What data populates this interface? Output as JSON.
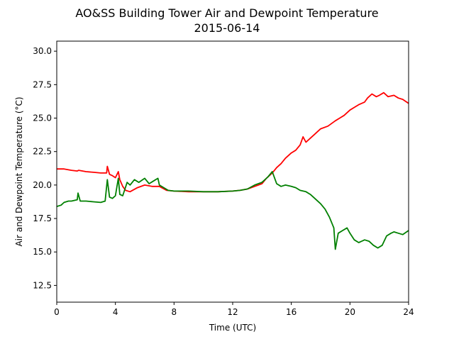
{
  "chart_data": {
    "type": "line",
    "title": "AO&SS Building Tower Air and Dewpoint Temperature",
    "subtitle": "2015-06-14",
    "xlabel": "Time (UTC)",
    "ylabel": "Air and Dewpoint Temperature (°C)",
    "xlim": [
      0,
      24
    ],
    "ylim": [
      11.25,
      30.75
    ],
    "xticks": [
      0,
      4,
      8,
      12,
      16,
      20,
      24
    ],
    "xtick_labels": [
      "0",
      "4",
      "8",
      "12",
      "16",
      "20",
      "24"
    ],
    "yticks": [
      12.5,
      15.0,
      17.5,
      20.0,
      22.5,
      25.0,
      27.5,
      30.0
    ],
    "ytick_labels": [
      "12.5",
      "15.0",
      "17.5",
      "20.0",
      "22.5",
      "25.0",
      "27.5",
      "30.0"
    ],
    "grid": false,
    "legend": "none",
    "series": [
      {
        "color": "#ff0000",
        "x": [
          0,
          0.5,
          1,
          1.4,
          1.5,
          2,
          2.5,
          3,
          3.4,
          3.45,
          3.6,
          3.8,
          4,
          4.2,
          4.3,
          4.5,
          4.7,
          5,
          5.5,
          6,
          6.5,
          7,
          7.5,
          8,
          9,
          10,
          11,
          12,
          12.5,
          13,
          13.5,
          14,
          14.3,
          14.7,
          15,
          15.3,
          15.6,
          16,
          16.3,
          16.6,
          16.8,
          17,
          17.3,
          17.6,
          18,
          18.5,
          19,
          19.3,
          19.6,
          20,
          20.3,
          20.6,
          21,
          21.2,
          21.5,
          21.8,
          22,
          22.3,
          22.6,
          23,
          23.3,
          23.6,
          24
        ],
        "y": [
          21.2,
          21.2,
          21.1,
          21.05,
          21.1,
          21.0,
          20.95,
          20.9,
          20.9,
          21.4,
          20.8,
          20.7,
          20.55,
          21.0,
          20.4,
          19.9,
          19.6,
          19.5,
          19.8,
          20.0,
          19.9,
          19.9,
          19.6,
          19.55,
          19.5,
          19.5,
          19.5,
          19.55,
          19.6,
          19.7,
          19.9,
          20.1,
          20.5,
          20.9,
          21.3,
          21.6,
          22.0,
          22.4,
          22.6,
          23.0,
          23.6,
          23.2,
          23.5,
          23.8,
          24.2,
          24.4,
          24.8,
          25.0,
          25.2,
          25.6,
          25.8,
          26.0,
          26.2,
          26.5,
          26.8,
          26.6,
          26.7,
          26.9,
          26.6,
          26.7,
          26.5,
          26.4,
          26.1
        ]
      },
      {
        "color": "#008000",
        "x": [
          0,
          0.3,
          0.5,
          0.8,
          1,
          1.4,
          1.45,
          1.6,
          2,
          2.5,
          3,
          3.3,
          3.45,
          3.6,
          3.8,
          4,
          4.2,
          4.3,
          4.5,
          4.8,
          5,
          5.3,
          5.6,
          6,
          6.3,
          6.6,
          6.9,
          7,
          7.3,
          7.6,
          8,
          9,
          10,
          11,
          12,
          12.5,
          13,
          13.5,
          14,
          14.4,
          14.7,
          15,
          15.3,
          15.6,
          16,
          16.3,
          16.6,
          17,
          17.3,
          17.6,
          18,
          18.3,
          18.6,
          18.9,
          19.0,
          19.2,
          19.5,
          19.8,
          20,
          20.3,
          20.6,
          21,
          21.3,
          21.6,
          21.9,
          22.2,
          22.5,
          22.8,
          23,
          23.3,
          23.6,
          24
        ],
        "y": [
          18.4,
          18.5,
          18.7,
          18.8,
          18.8,
          18.9,
          19.4,
          18.8,
          18.8,
          18.75,
          18.7,
          18.8,
          20.4,
          19.1,
          19.0,
          19.2,
          20.5,
          19.3,
          19.2,
          20.2,
          20.0,
          20.4,
          20.2,
          20.5,
          20.1,
          20.3,
          20.5,
          20.0,
          19.8,
          19.6,
          19.55,
          19.55,
          19.5,
          19.5,
          19.55,
          19.6,
          19.7,
          20.0,
          20.2,
          20.6,
          21.0,
          20.1,
          19.9,
          20.0,
          19.9,
          19.8,
          19.6,
          19.5,
          19.3,
          19.0,
          18.6,
          18.2,
          17.6,
          16.8,
          15.2,
          16.4,
          16.6,
          16.8,
          16.4,
          15.9,
          15.7,
          15.9,
          15.8,
          15.5,
          15.3,
          15.5,
          16.2,
          16.4,
          16.5,
          16.4,
          16.3,
          16.6
        ]
      }
    ]
  }
}
